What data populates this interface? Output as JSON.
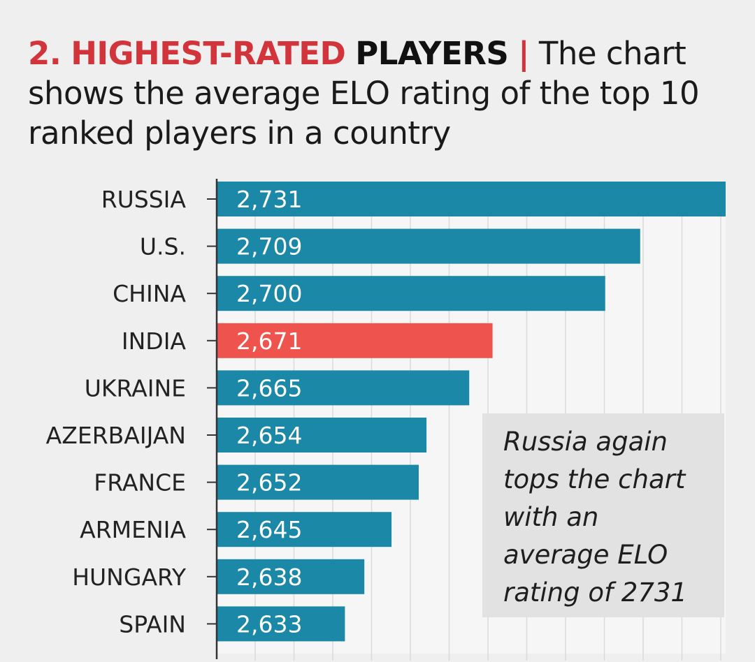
{
  "headline": {
    "number": "2.",
    "keyword_red": "HIGHEST-RATED",
    "keyword_black": "PLAYERS",
    "separator": "|",
    "description": "The chart shows the average ELO rating of the top 10 ranked players in a country"
  },
  "annotation": {
    "text": "Russia again tops the chart with an average ELO rating of 2731"
  },
  "chart_data": {
    "type": "bar",
    "orientation": "horizontal",
    "categories": [
      "RUSSIA",
      "U.S.",
      "CHINA",
      "INDIA",
      "UKRAINE",
      "AZERBAIJAN",
      "FRANCE",
      "ARMENIA",
      "HUNGARY",
      "SPAIN"
    ],
    "values": [
      2731,
      2709,
      2700,
      2671,
      2665,
      2654,
      2652,
      2645,
      2638,
      2633
    ],
    "value_labels": [
      "2,731",
      "2,709",
      "2,700",
      "2,671",
      "2,665",
      "2,654",
      "2,652",
      "2,645",
      "2,638",
      "2,633"
    ],
    "highlight": "INDIA",
    "title": "HIGHEST-RATED PLAYERS",
    "xlabel": "",
    "ylabel": "",
    "xlim": [
      2600,
      2731
    ],
    "grid": true,
    "colors": {
      "default": "#1a88a6",
      "highlight": "#ee534d"
    }
  }
}
